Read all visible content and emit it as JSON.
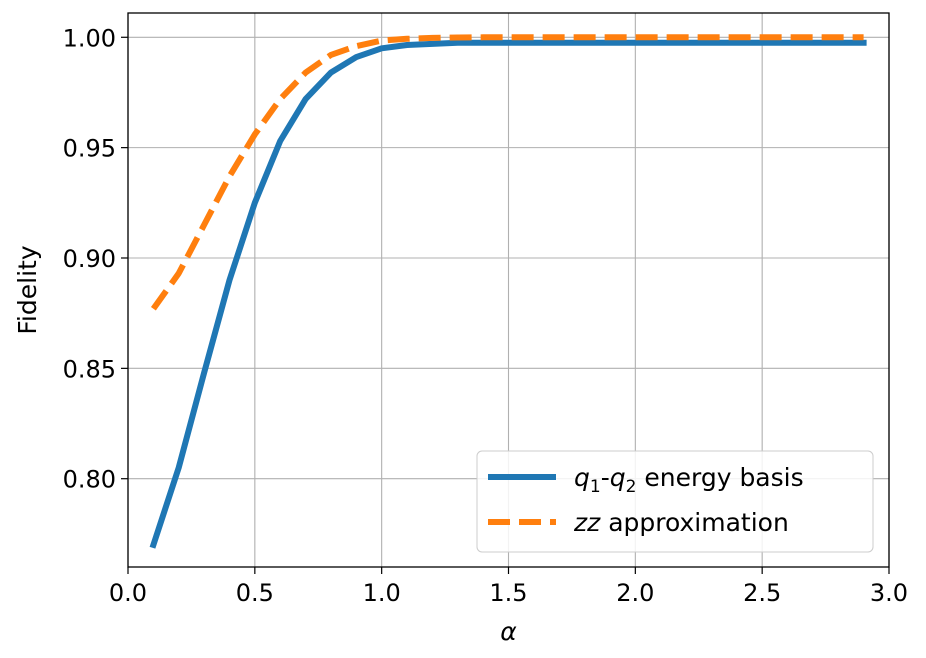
{
  "chart_data": {
    "type": "line",
    "xlabel": "α",
    "ylabel": "Fidelity",
    "xlim": [
      0.0,
      3.0
    ],
    "ylim": [
      0.76,
      1.011
    ],
    "xticks": [
      0.0,
      0.5,
      1.0,
      1.5,
      2.0,
      2.5,
      3.0
    ],
    "xtick_labels": [
      "0.0",
      "0.5",
      "1.0",
      "1.5",
      "2.0",
      "2.5",
      "3.0"
    ],
    "yticks": [
      0.8,
      0.85,
      0.9,
      0.95,
      1.0
    ],
    "ytick_labels": [
      "0.80",
      "0.85",
      "0.90",
      "0.95",
      "1.00"
    ],
    "grid": true,
    "legend_position": "lower-right",
    "series": [
      {
        "name": "q1-q2 energy basis",
        "name_parts": {
          "a": "q",
          "a_sub": "1",
          "sep": "-",
          "b": "q",
          "b_sub": "2",
          "rest": " energy basis"
        },
        "style": "solid",
        "color": "#1f77b4",
        "x": [
          0.1,
          0.2,
          0.3,
          0.4,
          0.5,
          0.6,
          0.7,
          0.8,
          0.9,
          1.0,
          1.1,
          1.2,
          1.3,
          1.4,
          1.5,
          1.6,
          1.7,
          1.8,
          1.9,
          2.0,
          2.1,
          2.2,
          2.3,
          2.4,
          2.5,
          2.6,
          2.7,
          2.8,
          2.9
        ],
        "y": [
          0.77,
          0.805,
          0.848,
          0.89,
          0.925,
          0.953,
          0.972,
          0.984,
          0.991,
          0.995,
          0.9965,
          0.997,
          0.9975,
          0.9975,
          0.9975,
          0.9975,
          0.9975,
          0.9975,
          0.9975,
          0.9975,
          0.9975,
          0.9975,
          0.9975,
          0.9975,
          0.9975,
          0.9975,
          0.9975,
          0.9975,
          0.9975
        ]
      },
      {
        "name": "zz approximation",
        "name_parts": {
          "a": "zz",
          "rest": " approximation"
        },
        "style": "dashed",
        "color": "#ff7f0e",
        "x": [
          0.1,
          0.2,
          0.3,
          0.4,
          0.5,
          0.6,
          0.7,
          0.8,
          0.9,
          1.0,
          1.1,
          1.2,
          1.3,
          1.4,
          1.5,
          1.6,
          1.7,
          1.8,
          1.9,
          2.0,
          2.1,
          2.2,
          2.3,
          2.4,
          2.5,
          2.6,
          2.7,
          2.8,
          2.9
        ],
        "y": [
          0.877,
          0.893,
          0.915,
          0.937,
          0.956,
          0.972,
          0.984,
          0.992,
          0.996,
          0.9985,
          0.9993,
          0.9997,
          0.9999,
          1.0,
          1.0,
          1.0,
          1.0,
          1.0,
          1.0,
          1.0,
          1.0,
          1.0,
          1.0,
          1.0,
          1.0,
          1.0,
          1.0,
          1.0,
          1.0
        ]
      }
    ]
  }
}
